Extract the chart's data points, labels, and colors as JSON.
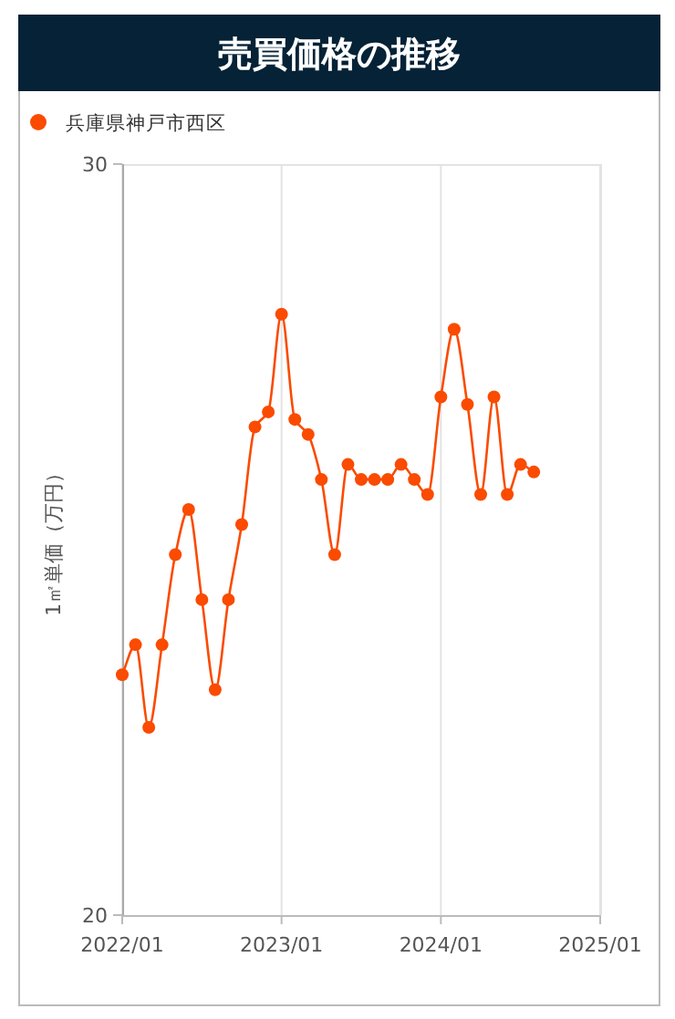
{
  "chart_data": {
    "type": "line",
    "title": "売買価格の推移",
    "ylabel": "1㎡単価（万円）",
    "x": [
      "2022-01",
      "2022-02",
      "2022-03",
      "2022-04",
      "2022-05",
      "2022-06",
      "2022-07",
      "2022-08",
      "2022-09",
      "2022-10",
      "2022-11",
      "2022-12",
      "2023-01",
      "2023-02",
      "2023-03",
      "2023-04",
      "2023-05",
      "2023-06",
      "2023-07",
      "2023-08",
      "2023-09",
      "2023-10",
      "2023-11",
      "2023-12",
      "2024-01",
      "2024-02",
      "2024-03",
      "2024-04",
      "2024-05",
      "2024-06",
      "2024-07",
      "2024-08"
    ],
    "series": [
      {
        "name": "兵庫県神戸市西区",
        "color": "#fa4b00",
        "values": [
          23.2,
          23.6,
          22.5,
          23.6,
          24.8,
          25.4,
          24.2,
          23.0,
          24.2,
          25.2,
          26.5,
          26.7,
          28.0,
          26.6,
          26.4,
          25.8,
          24.8,
          26.0,
          25.8,
          25.8,
          25.8,
          26.0,
          25.8,
          25.6,
          26.9,
          27.8,
          26.8,
          25.6,
          26.9,
          25.6,
          26.0,
          25.9
        ]
      }
    ],
    "xlim": [
      "2022-01",
      "2025-01"
    ],
    "xticks": [
      {
        "value": "2022-01",
        "label": "2022/01"
      },
      {
        "value": "2023-01",
        "label": "2023/01"
      },
      {
        "value": "2024-01",
        "label": "2024/01"
      },
      {
        "value": "2025-01",
        "label": "2025/01"
      }
    ],
    "ylim": [
      20,
      30
    ],
    "yticks": [
      20,
      30
    ],
    "grid": "x",
    "legend": "top left",
    "marker": "circle",
    "line_style": "solid"
  }
}
